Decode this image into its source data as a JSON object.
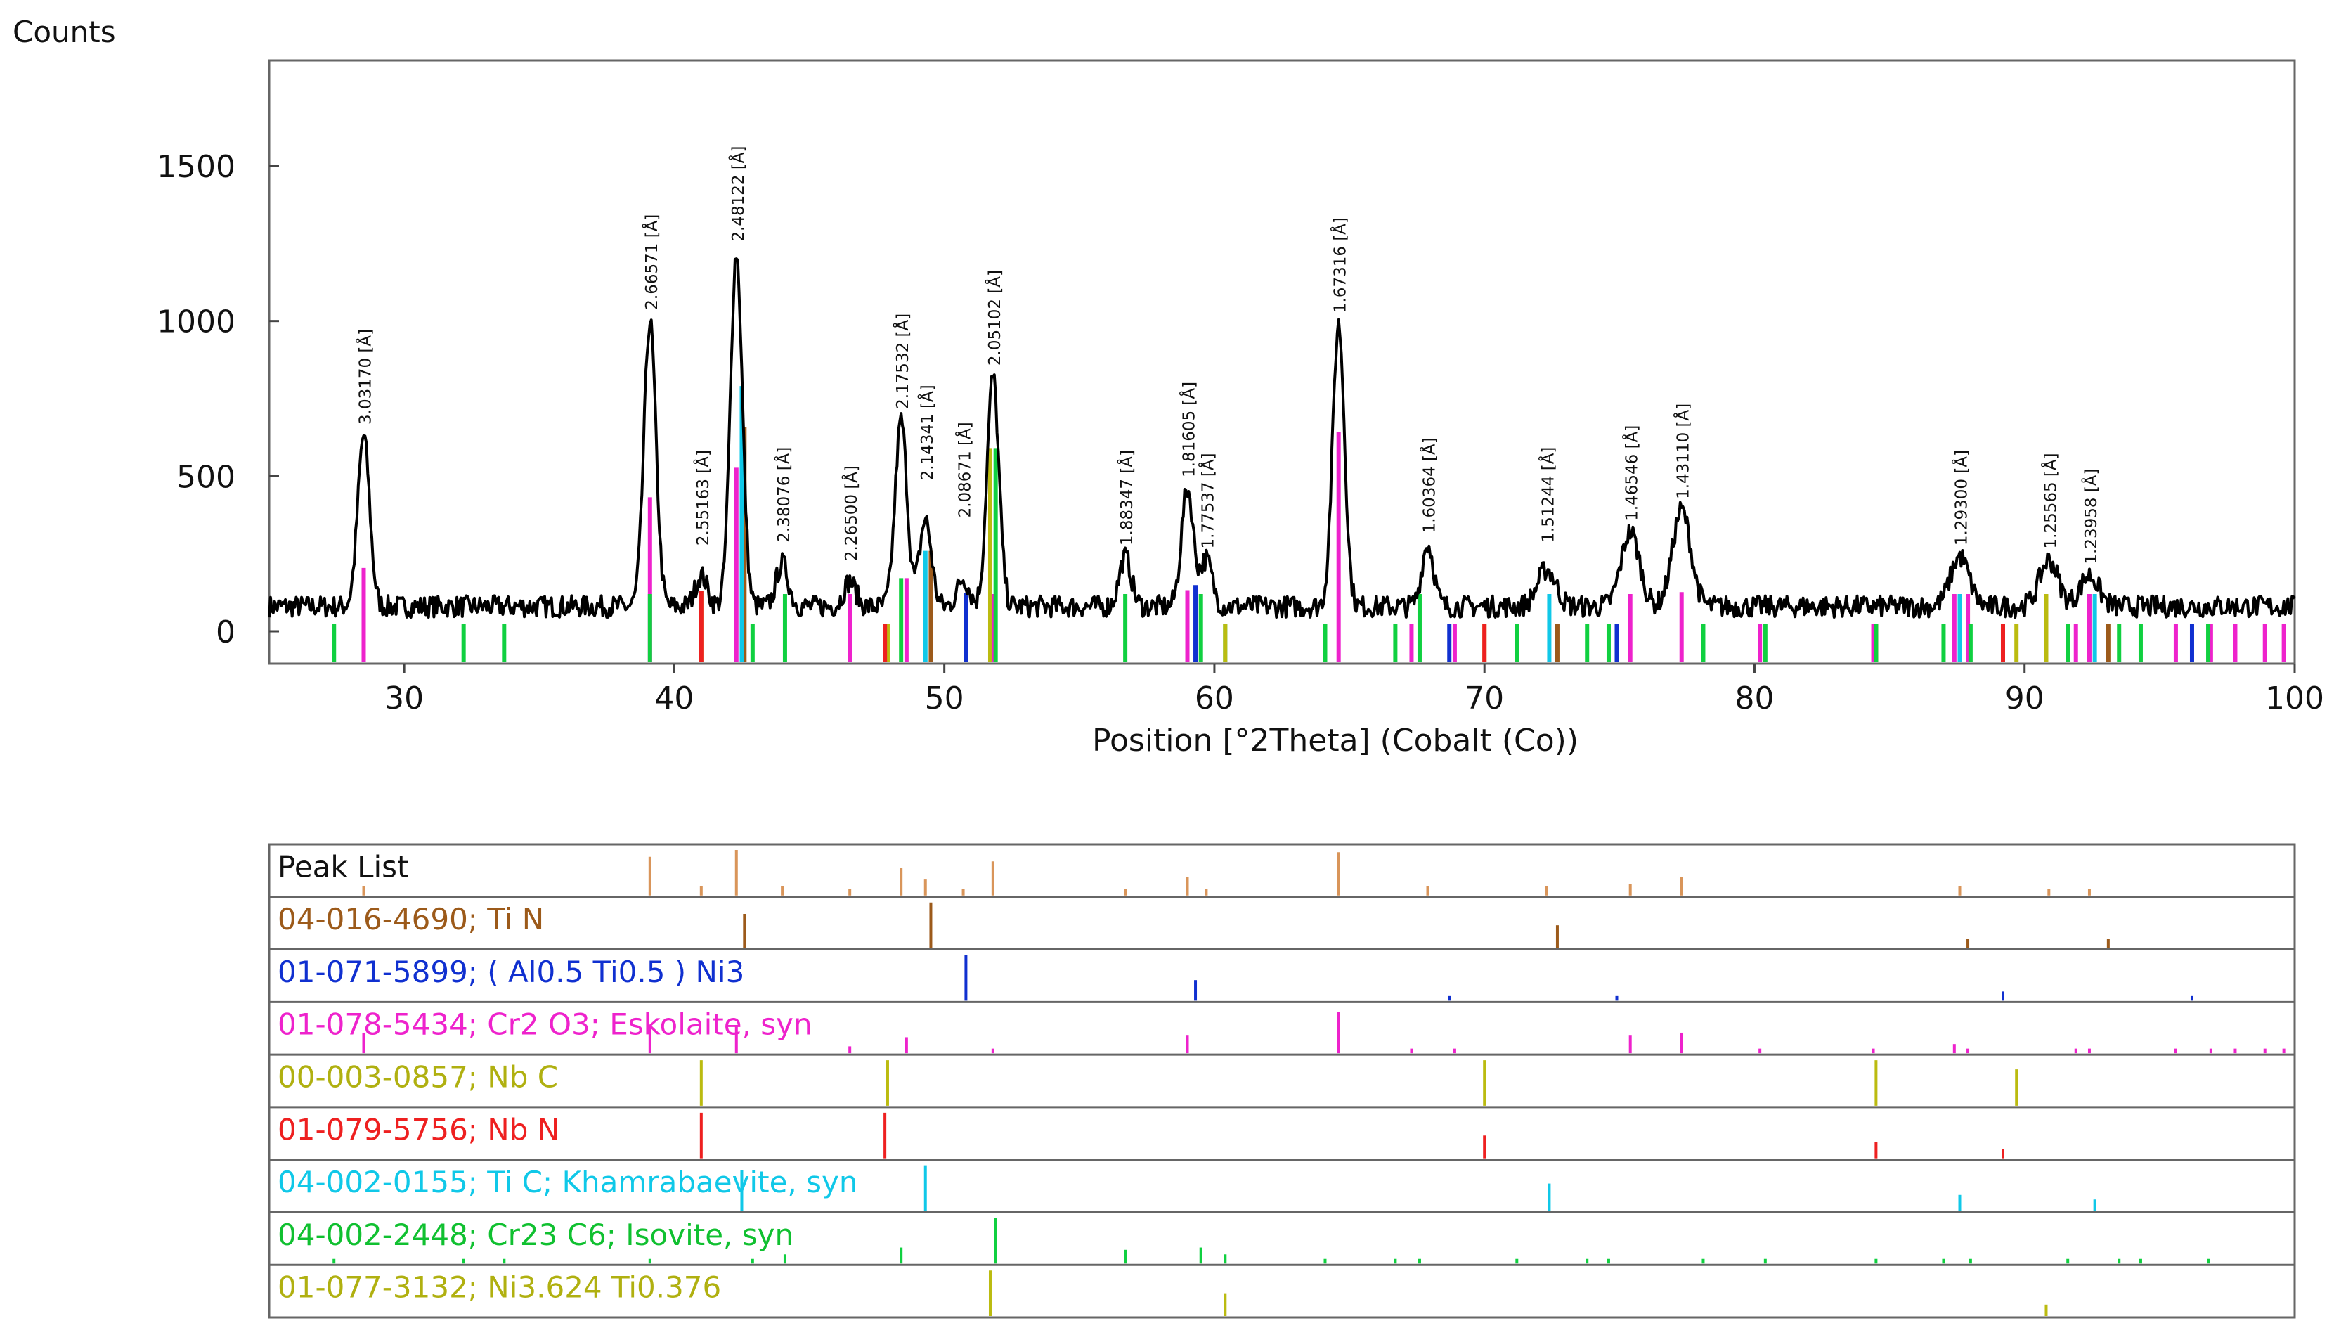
{
  "chart_data": [
    {
      "type": "line",
      "title": "",
      "xlabel": "Position [°2Theta] (Cobalt (Co))",
      "ylabel": "Counts",
      "xlim": [
        25,
        100
      ],
      "ylim": [
        -100,
        1800
      ],
      "x_ticks": [
        "30",
        "40",
        "50",
        "60",
        "70",
        "80",
        "90",
        "100"
      ],
      "y_ticks": [
        "0",
        "500",
        "1000",
        "1500"
      ],
      "grid": false,
      "background": 80,
      "series": [
        {
          "peaks": [
            {
              "x": 28.5,
              "y": 630
            },
            {
              "x": 39.1,
              "y": 1000
            },
            {
              "x": 41.0,
              "y": 180
            },
            {
              "x": 42.3,
              "y": 1220
            },
            {
              "x": 44.0,
              "y": 220
            },
            {
              "x": 46.5,
              "y": 160
            },
            {
              "x": 48.4,
              "y": 680
            },
            {
              "x": 49.3,
              "y": 360
            },
            {
              "x": 50.7,
              "y": 170
            },
            {
              "x": 51.8,
              "y": 820
            },
            {
              "x": 56.7,
              "y": 240
            },
            {
              "x": 59.0,
              "y": 460
            },
            {
              "x": 59.7,
              "y": 230
            },
            {
              "x": 64.6,
              "y": 990
            },
            {
              "x": 67.9,
              "y": 280
            },
            {
              "x": 72.3,
              "y": 200
            },
            {
              "x": 75.4,
              "y": 320
            },
            {
              "x": 77.3,
              "y": 390
            },
            {
              "x": 87.6,
              "y": 240
            },
            {
              "x": 90.9,
              "y": 230
            },
            {
              "x": 92.4,
              "y": 180
            }
          ]
        }
      ],
      "annotations": [
        {
          "x": 28.5,
          "y": 630,
          "text": "3.03170 [Å]"
        },
        {
          "x": 39.1,
          "y": 1000,
          "text": "2.66571 [Å]"
        },
        {
          "x": 41.0,
          "y": 240,
          "text": "2.55163 [Å]"
        },
        {
          "x": 42.3,
          "y": 1220,
          "text": "2.48122 [Å]"
        },
        {
          "x": 44.0,
          "y": 250,
          "text": "2.38076 [Å]"
        },
        {
          "x": 46.5,
          "y": 190,
          "text": "2.26500 [Å]"
        },
        {
          "x": 48.4,
          "y": 680,
          "text": "2.17532 [Å]"
        },
        {
          "x": 49.3,
          "y": 450,
          "text": "2.14341 [Å]"
        },
        {
          "x": 50.7,
          "y": 330,
          "text": "2.08671 [Å]"
        },
        {
          "x": 51.8,
          "y": 820,
          "text": "2.05102 [Å]"
        },
        {
          "x": 56.7,
          "y": 240,
          "text": "1.88347 [Å]"
        },
        {
          "x": 59.0,
          "y": 460,
          "text": "1.81605 [Å]"
        },
        {
          "x": 59.7,
          "y": 230,
          "text": "1.77537 [Å]"
        },
        {
          "x": 64.6,
          "y": 990,
          "text": "1.67316 [Å]"
        },
        {
          "x": 67.9,
          "y": 280,
          "text": "1.60364 [Å]"
        },
        {
          "x": 72.3,
          "y": 250,
          "text": "1.51244 [Å]"
        },
        {
          "x": 75.4,
          "y": 320,
          "text": "1.46546 [Å]"
        },
        {
          "x": 77.3,
          "y": 390,
          "text": "1.43110 [Å]"
        },
        {
          "x": 87.6,
          "y": 240,
          "text": "1.29300 [Å]"
        },
        {
          "x": 90.9,
          "y": 230,
          "text": "1.25565 [Å]"
        },
        {
          "x": 92.4,
          "y": 180,
          "text": "1.23958 [Å]"
        }
      ]
    },
    {
      "type": "table",
      "title": "",
      "xlim": [
        25,
        100
      ],
      "rows": [
        {
          "label": "Peak List",
          "color": "#d9955a",
          "text_color": "#111111",
          "sticks": [
            [
              28.5,
              0.2
            ],
            [
              39.1,
              0.85
            ],
            [
              41.0,
              0.2
            ],
            [
              42.3,
              1.0
            ],
            [
              44.0,
              0.2
            ],
            [
              46.5,
              0.15
            ],
            [
              48.4,
              0.6
            ],
            [
              49.3,
              0.35
            ],
            [
              50.7,
              0.15
            ],
            [
              51.8,
              0.75
            ],
            [
              56.7,
              0.15
            ],
            [
              59.0,
              0.4
            ],
            [
              59.7,
              0.15
            ],
            [
              64.6,
              0.95
            ],
            [
              67.9,
              0.2
            ],
            [
              72.3,
              0.2
            ],
            [
              75.4,
              0.25
            ],
            [
              77.3,
              0.4
            ],
            [
              87.6,
              0.2
            ],
            [
              90.9,
              0.15
            ],
            [
              92.4,
              0.15
            ]
          ]
        },
        {
          "label": "04-016-4690; Ti N",
          "color": "#9c5a1a",
          "text_color": "#9c5a1a",
          "sticks": [
            [
              42.6,
              0.75
            ],
            [
              49.5,
              1.0
            ],
            [
              72.7,
              0.5
            ],
            [
              87.9,
              0.2
            ],
            [
              93.1,
              0.2
            ]
          ]
        },
        {
          "label": "01-071-5899; ( Al0.5 Ti0.5 ) Ni3",
          "color": "#1030d0",
          "text_color": "#1030d0",
          "sticks": [
            [
              50.8,
              1.0
            ],
            [
              59.3,
              0.45
            ],
            [
              68.7,
              0.1
            ],
            [
              74.9,
              0.1
            ],
            [
              89.2,
              0.2
            ],
            [
              96.2,
              0.1
            ]
          ]
        },
        {
          "label": "01-078-5434; Cr2 O3; Eskolaite, syn",
          "color": "#ee22cc",
          "text_color": "#ee22cc",
          "sticks": [
            [
              28.5,
              0.45
            ],
            [
              39.1,
              0.6
            ],
            [
              42.3,
              0.6
            ],
            [
              46.5,
              0.15
            ],
            [
              48.6,
              0.35
            ],
            [
              51.8,
              0.1
            ],
            [
              59.0,
              0.4
            ],
            [
              64.6,
              0.9
            ],
            [
              67.3,
              0.1
            ],
            [
              68.9,
              0.1
            ],
            [
              75.4,
              0.4
            ],
            [
              77.3,
              0.45
            ],
            [
              80.2,
              0.1
            ],
            [
              84.4,
              0.1
            ],
            [
              87.4,
              0.2
            ],
            [
              87.9,
              0.1
            ],
            [
              91.9,
              0.1
            ],
            [
              92.4,
              0.1
            ],
            [
              95.6,
              0.1
            ],
            [
              96.9,
              0.1
            ],
            [
              97.8,
              0.1
            ],
            [
              98.9,
              0.1
            ],
            [
              99.6,
              0.1
            ]
          ]
        },
        {
          "label": "00-003-0857; Nb C",
          "color": "#bbbb10",
          "text_color": "#b0b010",
          "sticks": [
            [
              41.0,
              1.0
            ],
            [
              47.9,
              1.0
            ],
            [
              70.0,
              1.0
            ],
            [
              84.5,
              1.0
            ],
            [
              89.7,
              0.8
            ]
          ]
        },
        {
          "label": "01-079-5756; Nb N",
          "color": "#ee2020",
          "text_color": "#ee2020",
          "sticks": [
            [
              41.0,
              1.0
            ],
            [
              47.8,
              1.0
            ],
            [
              70.0,
              0.5
            ],
            [
              84.5,
              0.35
            ],
            [
              89.2,
              0.2
            ]
          ]
        },
        {
          "label": "04-002-0155; Ti C; Khamrabaevite, syn",
          "color": "#10c8e8",
          "text_color": "#10c8e8",
          "sticks": [
            [
              42.5,
              0.9
            ],
            [
              49.3,
              1.0
            ],
            [
              72.4,
              0.6
            ],
            [
              87.6,
              0.35
            ],
            [
              92.6,
              0.25
            ]
          ]
        },
        {
          "label": "04-002-2448; Cr23 C6; Isovite, syn",
          "color": "#10d040",
          "text_color": "#10c030",
          "sticks": [
            [
              27.4,
              0.1
            ],
            [
              32.2,
              0.1
            ],
            [
              33.7,
              0.1
            ],
            [
              39.1,
              0.1
            ],
            [
              42.9,
              0.1
            ],
            [
              44.1,
              0.2
            ],
            [
              48.4,
              0.35
            ],
            [
              51.9,
              1.0
            ],
            [
              56.7,
              0.3
            ],
            [
              59.5,
              0.35
            ],
            [
              60.4,
              0.2
            ],
            [
              64.1,
              0.1
            ],
            [
              66.7,
              0.1
            ],
            [
              67.6,
              0.1
            ],
            [
              71.2,
              0.1
            ],
            [
              73.8,
              0.1
            ],
            [
              74.6,
              0.1
            ],
            [
              78.1,
              0.1
            ],
            [
              80.4,
              0.1
            ],
            [
              84.5,
              0.1
            ],
            [
              87.0,
              0.1
            ],
            [
              88.0,
              0.1
            ],
            [
              91.6,
              0.1
            ],
            [
              93.5,
              0.1
            ],
            [
              94.3,
              0.1
            ],
            [
              96.8,
              0.1
            ]
          ]
        },
        {
          "label": "01-077-3132; Ni3.624 Ti0.376",
          "color": "#bbbb10",
          "text_color": "#b0b010",
          "sticks": [
            [
              51.7,
              1.0
            ],
            [
              60.4,
              0.5
            ],
            [
              90.8,
              0.25
            ]
          ]
        }
      ]
    }
  ]
}
